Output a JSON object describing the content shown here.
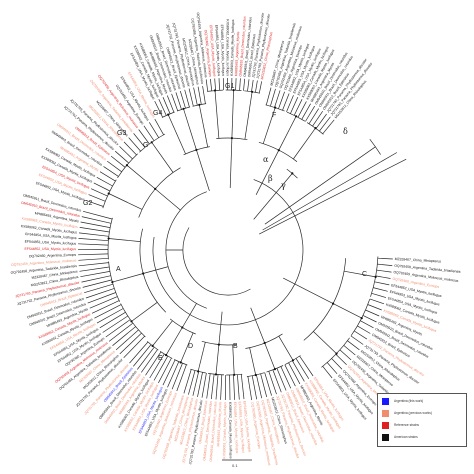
{
  "figure": {
    "clade_labels": [
      "G1",
      "G2",
      "G3",
      "G4",
      "G",
      "F",
      "A",
      "B",
      "C",
      "D",
      "E"
    ],
    "greek_labels": [
      "α",
      "β",
      "γ",
      "δ"
    ],
    "scale_bar_label": "0.1",
    "leaf_text_samples": [
      "EF544852_USA_Myotis_lucifugus",
      "EF544853_USA_Myotis_lucifugus",
      "EF544854_USA_Myotis_lucifugus",
      "KX589062_Canada_Myotis_lucifugus",
      "KX589063_Canada_Myotis_lucifugus",
      "MH885493_Argentina_Myotis",
      "OM945910_Brazil_Desmodus_rotundus",
      "OM945911_Brazil_Desmodus_rotundus",
      "OM945912_Brazil_Eptesicus",
      "JQ731792_Panama_Phyllostomus_discolor",
      "JQ731793_Panama_Phyllostomus_discolor",
      "MG253812_China_Rhinolophus",
      "MZ328467_China_Miniopterus",
      "OQ792458_Argentina_Tadarida_brasiliensis",
      "OQ792459_Argentina_Molossus_molossus",
      "OQ792460_Argentina_Eumops"
    ]
  },
  "legend": {
    "items": [
      {
        "label": "Argentina (this work)",
        "color": "#1a1aff"
      },
      {
        "label": "Argentina (previous works)",
        "color": "#f28c6e"
      },
      {
        "label": "Reference strains",
        "color": "#e02020"
      },
      {
        "label": "American strains",
        "color": "#111111"
      }
    ]
  },
  "colors": {
    "branch": "#2a2a2a",
    "this_work": "#1a1aff",
    "previous": "#f28c6e",
    "reference": "#e02020",
    "american": "#111111"
  }
}
